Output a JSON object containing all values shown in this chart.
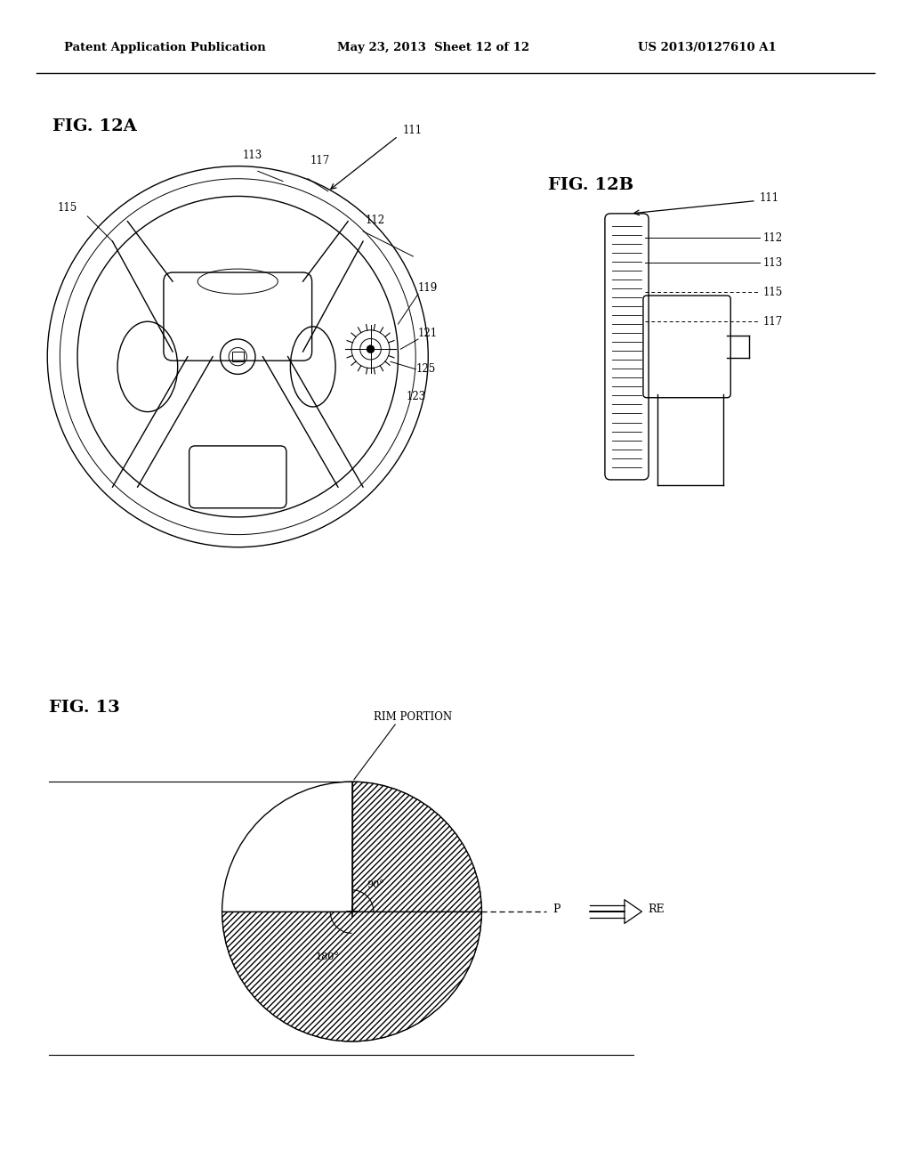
{
  "background_color": "#ffffff",
  "header_text": "Patent Application Publication",
  "header_date": "May 23, 2013  Sheet 12 of 12",
  "header_patent": "US 2013/0127610 A1",
  "fig12a_label": "FIG. 12A",
  "fig12b_label": "FIG. 12B",
  "fig13_label": "FIG. 13"
}
